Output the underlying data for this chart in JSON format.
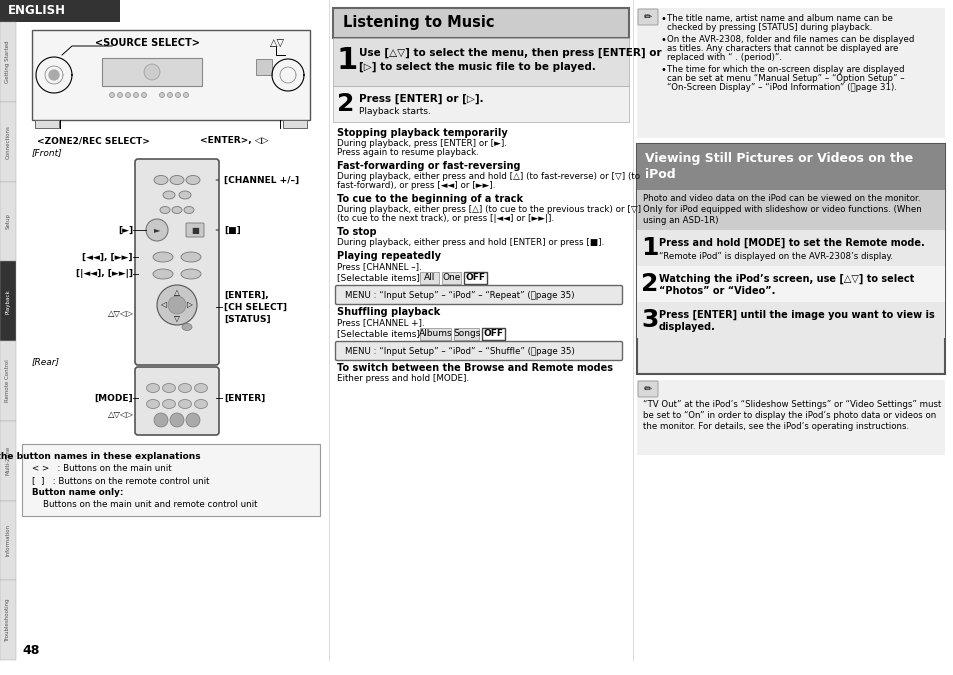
{
  "page_number": "48",
  "language_tab": "ENGLISH",
  "tab_bg": "#333333",
  "tab_text": "#ffffff",
  "page_bg": "#ffffff",
  "sidebar_labels": [
    "Getting Started",
    "Connections",
    "Setup",
    "Playback",
    "Remote Control",
    "Multi-Zone",
    "Information",
    "Troubleshooting"
  ],
  "sidebar_active": "Playback",
  "box1_title": "Listening to Music",
  "step1_bold": "Use [△▽] to select the menu, then press [ENTER] or",
  "step1_bold2": "[▷] to select the music file to be played.",
  "step2_bold": "Press [ENTER] or [▷].",
  "step2_sub": "Playback starts.",
  "sections": [
    {
      "title": "Stopping playback temporarily",
      "body": [
        "During playback, press [ENTER] or [►].",
        "Press again to resume playback."
      ]
    },
    {
      "title": "Fast-forwarding or fast-reversing",
      "body": [
        "During playback, either press and hold [△] (to fast-reverse) or [▽] (to",
        "fast-forward), or press [◄◄] or [►►]."
      ]
    },
    {
      "title": "To cue to the beginning of a track",
      "body": [
        "During playback, either press [△] (to cue to the previous track) or [▽]",
        "(to cue to the next track), or press [|◄◄] or [►►|]."
      ]
    },
    {
      "title": "To stop",
      "body": [
        "During playback, either press and hold [ENTER] or press [■]."
      ]
    }
  ],
  "repeat_title": "Playing repeatedly",
  "repeat_body": "Press [CHANNEL –].",
  "sel1_label": "[Selectable items]",
  "sel1_items": [
    "All",
    "One",
    "OFF"
  ],
  "sel1_active": "OFF",
  "menu1_text": "MENU : “Input Setup” – “iPod” – “Repeat”",
  "menu1_page": "⭐page 35",
  "shuffle_title": "Shuffling playback",
  "shuffle_body": "Press [CHANNEL +].",
  "sel2_label": "[Selectable items]",
  "sel2_items": [
    "Albums",
    "Songs",
    "OFF"
  ],
  "sel2_active": "OFF",
  "menu2_text": "MENU : “Input Setup” – “iPod” – “Shuffle”",
  "menu2_page": "⭐page 35",
  "switch_title": "To switch between the Browse and Remote modes",
  "switch_body": "Either press and hold [MODE].",
  "note1_icon": "✎",
  "note1_bullets": [
    "The title name, artist name and album name can be checked by pressing [STATUS] during playback.",
    "On the AVR-2308, folder and file names can be displayed as titles. Any characters that cannot be displayed are replaced with “ . (period)”.",
    "The time for which the on-screen display are displayed can be set at menu “Manual Setup” – “Option Setup” – “On-Screen Display” – “iPod Information” (⭐page 31)."
  ],
  "box2_title1": "Viewing Still Pictures or Videos on the",
  "box2_title2": "iPod",
  "box2_intro": [
    "Photo and video data on the iPod can be viewed on the monitor.",
    "Only for iPod equipped with slideshow or video functions. (When",
    "using an ASD-1R)"
  ],
  "vstep1_bold": "Press and hold [MODE] to set the Remote mode.",
  "vstep1_sub": "“Remote iPod” is displayed on the AVR-2308’s display.",
  "vstep2_bold1": "Watching the iPod’s screen, use [△▽] to select",
  "vstep2_bold2": "“Photos” or “Video”.",
  "vstep3_bold1": "Press [ENTER] until the image you want to view is",
  "vstep3_bold2": "displayed.",
  "note2_icon": "✎",
  "note2_lines": [
    "“TV Out” at the iPod’s “Slideshow Settings” or “Video Settings” must",
    "be set to “On” in order to display the iPod’s photo data or videos on",
    "the monitor. For details, see the iPod’s operating instructions."
  ],
  "footnote_title": "About the button names in these explanations",
  "footnote_lines": [
    "< >   : Buttons on the main unit",
    "[  ]   : Buttons on the remote control unit",
    "Button name only:",
    "    Buttons on the main unit and remote control unit"
  ]
}
